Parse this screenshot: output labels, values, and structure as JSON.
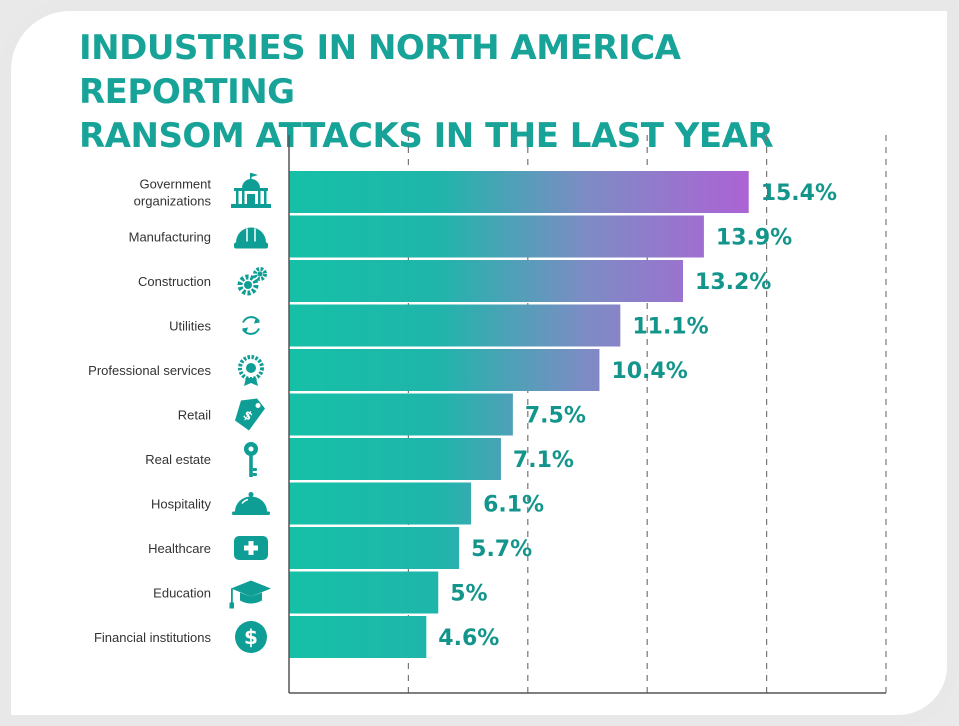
{
  "title": {
    "line1": "INDUSTRIES IN NORTH AMERICA REPORTING",
    "line2": "RANSOM ATTACKS IN THE LAST YEAR"
  },
  "colors": {
    "title": "#17a398",
    "bar_start": "#16c0a7",
    "bar_end": "#b65ad8",
    "icon": "#0f9e95",
    "value_label": "#13958c",
    "axis": "#555555",
    "grid": "#777777"
  },
  "chart_data": {
    "type": "bar",
    "orientation": "horizontal",
    "title": "INDUSTRIES IN NORTH AMERICA REPORTING RANSOM ATTACKS IN THE LAST YEAR",
    "xlim": [
      0,
      20
    ],
    "grid": "vertical dashed",
    "categories": [
      {
        "label": [
          "Government",
          "organizations"
        ],
        "value": 15.4,
        "value_label": "15.4%",
        "icon": "government-building-icon"
      },
      {
        "label": [
          "Manufacturing"
        ],
        "value": 13.9,
        "value_label": "13.9%",
        "icon": "hard-hat-icon"
      },
      {
        "label": [
          "Construction"
        ],
        "value": 13.2,
        "value_label": "13.2%",
        "icon": "gears-icon"
      },
      {
        "label": [
          "Utilities"
        ],
        "value": 11.1,
        "value_label": "11.1%",
        "icon": "refresh-arrows-icon"
      },
      {
        "label": [
          "Professional services"
        ],
        "value": 10.4,
        "value_label": "10.4%",
        "icon": "award-badge-icon"
      },
      {
        "label": [
          "Retail"
        ],
        "value": 7.5,
        "value_label": "7.5%",
        "icon": "price-tag-icon"
      },
      {
        "label": [
          "Real estate"
        ],
        "value": 7.1,
        "value_label": "7.1%",
        "icon": "key-icon"
      },
      {
        "label": [
          "Hospitality"
        ],
        "value": 6.1,
        "value_label": "6.1%",
        "icon": "serving-cloche-icon"
      },
      {
        "label": [
          "Healthcare"
        ],
        "value": 5.7,
        "value_label": "5.7%",
        "icon": "medical-kit-icon"
      },
      {
        "label": [
          "Education"
        ],
        "value": 5,
        "value_label": "5%",
        "icon": "graduation-cap-icon"
      },
      {
        "label": [
          "Financial institutions"
        ],
        "value": 4.6,
        "value_label": "4.6%",
        "icon": "dollar-coin-icon"
      }
    ]
  }
}
